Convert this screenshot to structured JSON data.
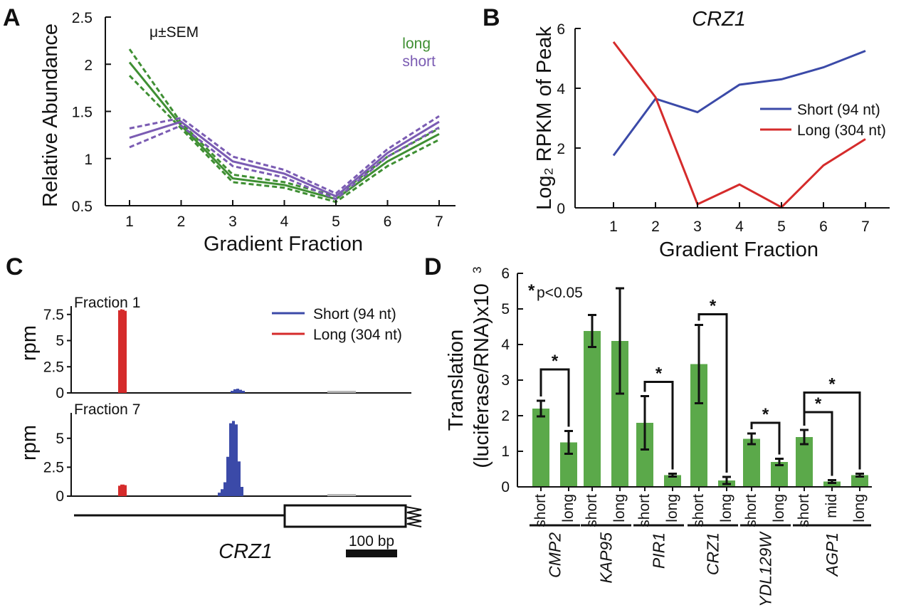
{
  "colors": {
    "green": "#3f8f33",
    "purple": "#7b5cb3",
    "blue": "#3b4aa8",
    "red": "#d52b2b",
    "bar_green": "#5ba94a",
    "grey": "#b8b8b8",
    "axis": "#111111"
  },
  "panels": {
    "A": "A",
    "B": "B",
    "C": "C",
    "D": "D"
  },
  "chart_data": [
    {
      "panel": "A",
      "type": "line",
      "title": "",
      "annotation": "μ±SEM",
      "xlabel": "Gradient Fraction",
      "ylabel": "Relative Abundance",
      "x": [
        1,
        2,
        3,
        4,
        5,
        6,
        7
      ],
      "xticks": [
        "1",
        "2",
        "3",
        "4",
        "5",
        "6",
        "7"
      ],
      "yticks": [
        "0.5",
        "1",
        "1.5",
        "2",
        "2.5"
      ],
      "ylim": [
        0.5,
        2.5
      ],
      "legend_position": "top-right",
      "series": [
        {
          "name": "long",
          "color": "#3f8f33",
          "values": [
            2.02,
            1.35,
            0.79,
            0.72,
            0.57,
            0.97,
            1.26
          ],
          "sem": [
            0.14,
            0.03,
            0.04,
            0.03,
            0.03,
            0.05,
            0.06
          ]
        },
        {
          "name": "short",
          "color": "#7b5cb3",
          "values": [
            1.22,
            1.39,
            0.97,
            0.84,
            0.6,
            1.06,
            1.39
          ],
          "sem": [
            0.1,
            0.04,
            0.05,
            0.04,
            0.03,
            0.04,
            0.06
          ]
        }
      ]
    },
    {
      "panel": "B",
      "type": "line",
      "title": "CRZ1",
      "xlabel": "Gradient Fraction",
      "ylabel": "Log₂ RPKM of Peak",
      "x": [
        1,
        2,
        3,
        4,
        5,
        6,
        7
      ],
      "xticks": [
        "1",
        "2",
        "3",
        "4",
        "5",
        "6",
        "7"
      ],
      "yticks": [
        "0",
        "2",
        "4",
        "6"
      ],
      "ylim": [
        0,
        6
      ],
      "legend_position": "right",
      "series": [
        {
          "name": "Short (94 nt)",
          "color": "#3b4aa8",
          "values": [
            1.75,
            3.65,
            3.2,
            4.12,
            4.3,
            4.7,
            5.25
          ]
        },
        {
          "name": "Long (304 nt)",
          "color": "#d52b2b",
          "values": [
            5.55,
            3.7,
            0.12,
            0.78,
            0.02,
            1.42,
            2.3
          ]
        }
      ]
    },
    {
      "panel": "C",
      "type": "bar",
      "title": "",
      "legend_position": "top-right",
      "legend": [
        {
          "name": "Short (94 nt)",
          "color": "#3b4aa8"
        },
        {
          "name": "Long (304 nt)",
          "color": "#d52b2b"
        }
      ],
      "tracks": [
        {
          "label": "Fraction 1",
          "ylabel": "rpm",
          "yticks": [
            "0",
            "2.5",
            "5",
            "7.5"
          ],
          "ylim": [
            0,
            8.3
          ],
          "long_peak": [
            7.9,
            8.0,
            7.95,
            7.85
          ],
          "short_peak": [
            0.2,
            0.35,
            0.4,
            0.3,
            0.2
          ]
        },
        {
          "label": "Fraction 7",
          "ylabel": "rpm",
          "yticks": [
            "0",
            "2.5",
            "5"
          ],
          "ylim": [
            0,
            7.2
          ],
          "long_peak": [
            0.9,
            1.0,
            1.0,
            0.95
          ],
          "short_peak": [
            0.3,
            0.6,
            1.2,
            3.4,
            6.3,
            6.5,
            6.2,
            3.0,
            0.8
          ]
        }
      ],
      "gene": "CRZ1",
      "scale_bar": "100 bp"
    },
    {
      "panel": "D",
      "type": "bar",
      "title": "",
      "ylabel_line1": "Translation",
      "ylabel_line2": "(luciferase/RNA)x10",
      "ylabel_sup": "3",
      "yticks": [
        "0",
        "1",
        "2",
        "3",
        "4",
        "5",
        "6"
      ],
      "ylim": [
        0,
        6
      ],
      "significance_star": "*",
      "significance_note": "p<0.05",
      "genes": [
        {
          "name": "CMP2",
          "bars": [
            {
              "label": "short",
              "value": 2.2,
              "err": 0.22
            },
            {
              "label": "long",
              "value": 1.25,
              "err": 0.32
            }
          ]
        },
        {
          "name": "KAP95",
          "bars": [
            {
              "label": "short",
              "value": 4.38,
              "err": 0.45
            },
            {
              "label": "long",
              "value": 4.1,
              "err": 1.48
            }
          ]
        },
        {
          "name": "PIR1",
          "bars": [
            {
              "label": "short",
              "value": 1.8,
              "err": 0.75
            },
            {
              "label": "long",
              "value": 0.33,
              "err": 0.04
            }
          ]
        },
        {
          "name": "CRZ1",
          "bars": [
            {
              "label": "short",
              "value": 3.45,
              "err": 1.1
            },
            {
              "label": "long",
              "value": 0.18,
              "err": 0.1
            }
          ]
        },
        {
          "name": "YDL129W",
          "bars": [
            {
              "label": "short",
              "value": 1.35,
              "err": 0.15
            },
            {
              "label": "long",
              "value": 0.7,
              "err": 0.09
            }
          ]
        },
        {
          "name": "AGP1",
          "bars": [
            {
              "label": "short",
              "value": 1.4,
              "err": 0.2
            },
            {
              "label": "mid",
              "value": 0.15,
              "err": 0.04
            },
            {
              "label": "long",
              "value": 0.33,
              "err": 0.04
            }
          ]
        }
      ],
      "comparisons": [
        {
          "gene": 0,
          "from": 0,
          "to": 1,
          "level": 3.3,
          "star": "*"
        },
        {
          "gene": 2,
          "from": 0,
          "to": 1,
          "level": 2.95,
          "star": "*"
        },
        {
          "gene": 3,
          "from": 0,
          "to": 1,
          "level": 4.85,
          "star": "*"
        },
        {
          "gene": 4,
          "from": 0,
          "to": 1,
          "level": 1.8,
          "star": "*"
        },
        {
          "gene": 5,
          "from": 0,
          "to": 1,
          "level": 2.1,
          "star": "*"
        },
        {
          "gene": 5,
          "from": 0,
          "to": 2,
          "level": 2.65,
          "star": "*"
        }
      ]
    }
  ]
}
